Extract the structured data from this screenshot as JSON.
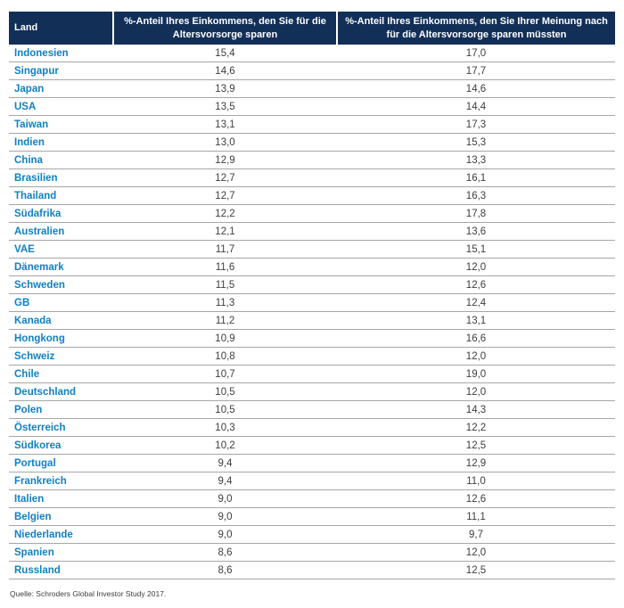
{
  "table": {
    "columns": [
      {
        "label": "Land"
      },
      {
        "label": "%-Anteil Ihres Einkommens, den Sie für die Altersvorsorge sparen"
      },
      {
        "label": "%-Anteil Ihres Einkommens, den Sie Ihrer Meinung nach für die Altersvorsorge sparen müssten"
      }
    ],
    "rows": [
      {
        "land": "Indonesien",
        "actual": "15,4",
        "desired": "17,0"
      },
      {
        "land": "Singapur",
        "actual": "14,6",
        "desired": "17,7"
      },
      {
        "land": "Japan",
        "actual": "13,9",
        "desired": "14,6"
      },
      {
        "land": "USA",
        "actual": "13,5",
        "desired": "14,4"
      },
      {
        "land": "Taiwan",
        "actual": "13,1",
        "desired": "17,3"
      },
      {
        "land": "Indien",
        "actual": "13,0",
        "desired": "15,3"
      },
      {
        "land": "China",
        "actual": "12,9",
        "desired": "13,3"
      },
      {
        "land": "Brasilien",
        "actual": "12,7",
        "desired": "16,1"
      },
      {
        "land": "Thailand",
        "actual": "12,7",
        "desired": "16,3"
      },
      {
        "land": "Südafrika",
        "actual": "12,2",
        "desired": "17,8"
      },
      {
        "land": "Australien",
        "actual": "12,1",
        "desired": "13,6"
      },
      {
        "land": "VAE",
        "actual": "11,7",
        "desired": "15,1"
      },
      {
        "land": "Dänemark",
        "actual": "11,6",
        "desired": "12,0"
      },
      {
        "land": "Schweden",
        "actual": "11,5",
        "desired": "12,6"
      },
      {
        "land": "GB",
        "actual": "11,3",
        "desired": "12,4"
      },
      {
        "land": "Kanada",
        "actual": "11,2",
        "desired": "13,1"
      },
      {
        "land": "Hongkong",
        "actual": "10,9",
        "desired": "16,6"
      },
      {
        "land": "Schweiz",
        "actual": "10,8",
        "desired": "12,0"
      },
      {
        "land": "Chile",
        "actual": "10,7",
        "desired": "19,0"
      },
      {
        "land": "Deutschland",
        "actual": "10,5",
        "desired": "12,0"
      },
      {
        "land": "Polen",
        "actual": "10,5",
        "desired": "14,3"
      },
      {
        "land": "Österreich",
        "actual": "10,3",
        "desired": "12,2"
      },
      {
        "land": "Südkorea",
        "actual": "10,2",
        "desired": "12,5"
      },
      {
        "land": "Portugal",
        "actual": "9,4",
        "desired": "12,9"
      },
      {
        "land": "Frankreich",
        "actual": "9,4",
        "desired": "11,0"
      },
      {
        "land": "Italien",
        "actual": "9,0",
        "desired": "12,6"
      },
      {
        "land": "Belgien",
        "actual": "9,0",
        "desired": "11,1"
      },
      {
        "land": "Niederlande",
        "actual": "9,0",
        "desired": "9,7"
      },
      {
        "land": "Spanien",
        "actual": "8,6",
        "desired": "12,0"
      },
      {
        "land": "Russland",
        "actual": "8,6",
        "desired": "12,5"
      }
    ]
  },
  "footer": {
    "source": "Quelle: Schroders Global Investor Study 2017."
  },
  "colors": {
    "header_bg": "#122f58",
    "header_text": "#ffffff",
    "country_text": "#1080c4",
    "value_text": "#3d3d3d",
    "row_border": "#a6a6a6"
  },
  "chart_data": {
    "type": "table",
    "title": "",
    "columns": [
      "Land",
      "%-Anteil Ihres Einkommens, den Sie für die Altersvorsorge sparen",
      "%-Anteil Ihres Einkommens, den Sie Ihrer Meinung nach für die Altersvorsorge sparen müssten"
    ],
    "categories": [
      "Indonesien",
      "Singapur",
      "Japan",
      "USA",
      "Taiwan",
      "Indien",
      "China",
      "Brasilien",
      "Thailand",
      "Südafrika",
      "Australien",
      "VAE",
      "Dänemark",
      "Schweden",
      "GB",
      "Kanada",
      "Hongkong",
      "Schweiz",
      "Chile",
      "Deutschland",
      "Polen",
      "Österreich",
      "Südkorea",
      "Portugal",
      "Frankreich",
      "Italien",
      "Belgien",
      "Niederlande",
      "Spanien",
      "Russland"
    ],
    "series": [
      {
        "name": "%-Anteil Ihres Einkommens, den Sie für die Altersvorsorge sparen",
        "values": [
          15.4,
          14.6,
          13.9,
          13.5,
          13.1,
          13.0,
          12.9,
          12.7,
          12.7,
          12.2,
          12.1,
          11.7,
          11.6,
          11.5,
          11.3,
          11.2,
          10.9,
          10.8,
          10.7,
          10.5,
          10.5,
          10.3,
          10.2,
          9.4,
          9.4,
          9.0,
          9.0,
          9.0,
          8.6,
          8.6
        ]
      },
      {
        "name": "%-Anteil Ihres Einkommens, den Sie Ihrer Meinung nach für die Altersvorsorge sparen müssten",
        "values": [
          17.0,
          17.7,
          14.6,
          14.4,
          17.3,
          15.3,
          13.3,
          16.1,
          16.3,
          17.8,
          13.6,
          15.1,
          12.0,
          12.6,
          12.4,
          13.1,
          16.6,
          12.0,
          19.0,
          12.0,
          14.3,
          12.2,
          12.5,
          12.9,
          11.0,
          12.6,
          11.1,
          9.7,
          12.0,
          12.5
        ]
      }
    ],
    "annotations": [
      "Quelle: Schroders Global Investor Study 2017."
    ]
  }
}
